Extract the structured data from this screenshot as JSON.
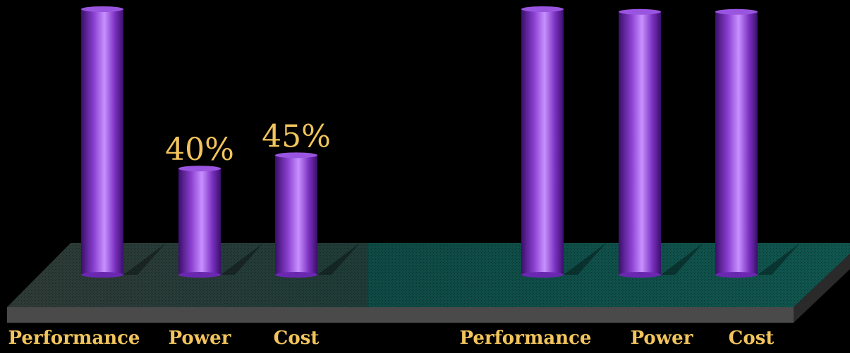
{
  "chart_data": [
    {
      "type": "bar",
      "categories": [
        "Performance",
        "Power",
        "Cost"
      ],
      "values": [
        100,
        40,
        45
      ],
      "data_labels": [
        "",
        "40%",
        "45%"
      ],
      "ylim": [
        0,
        100
      ],
      "grid": false
    },
    {
      "type": "bar",
      "categories": [
        "Performance",
        "Power",
        "Cost"
      ],
      "values": [
        100,
        99,
        99
      ],
      "data_labels": [
        "",
        "",
        ""
      ],
      "ylim": [
        0,
        100
      ],
      "grid": false
    }
  ],
  "colors": {
    "background": "#000000",
    "bar": "#8a3fd0",
    "bar_highlight": "#c890ff",
    "bar_shadow": "#3a0f6a",
    "label": "#f2c45c",
    "platform_left": "#2e3a36",
    "platform_right": "#0f4a45",
    "platform_front": "#4a4a4a"
  }
}
